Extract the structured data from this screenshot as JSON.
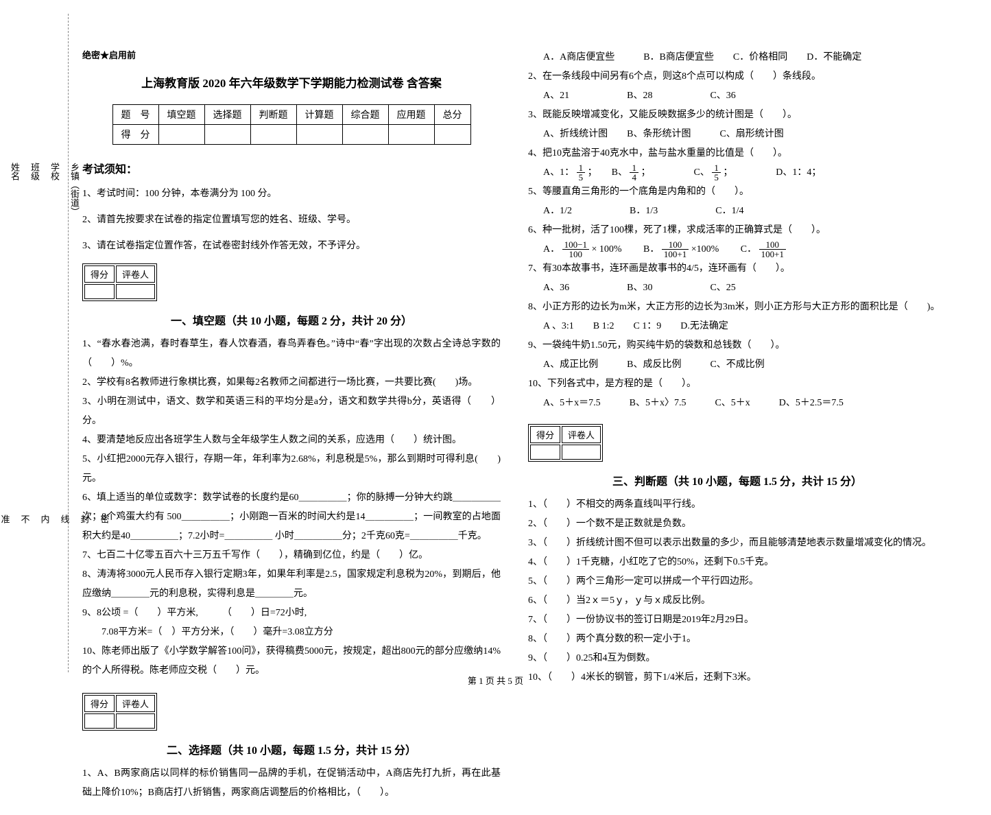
{
  "margin": {
    "labels": [
      "乡镇（街道）",
      "学校",
      "班级",
      "姓名",
      "学号"
    ],
    "hints": [
      "密",
      "封",
      "线",
      "内",
      "不",
      "准",
      "答",
      "题"
    ]
  },
  "header": {
    "secret": "绝密★启用前",
    "title": "上海教育版 2020 年六年级数学下学期能力检测试卷 含答案"
  },
  "score_table": {
    "row1": [
      "题　号",
      "填空题",
      "选择题",
      "判断题",
      "计算题",
      "综合题",
      "应用题",
      "总分"
    ],
    "row2": [
      "得　分",
      "",
      "",
      "",
      "",
      "",
      "",
      ""
    ]
  },
  "notice": {
    "head": "考试须知：",
    "items": [
      "1、考试时间：100 分钟，本卷满分为 100 分。",
      "2、请首先按要求在试卷的指定位置填写您的姓名、班级、学号。",
      "3、请在试卷指定位置作答，在试卷密封线外作答无效，不予评分。"
    ]
  },
  "scorebox_labels": [
    "得分",
    "评卷人"
  ],
  "section1": {
    "title": "一、填空题（共 10 小题，每题 2 分，共计 20 分）",
    "q1": "1、“春水春池满，春时春草生，春人饮春酒，春鸟弄春色。”诗中“春”字出现的次数占全诗总字数的（　　）%。",
    "q2": "2、学校有8名教师进行象棋比赛，如果每2名教师之间都进行一场比赛，一共要比赛(　　)场。",
    "q3": "3、小明在测试中，语文、数学和英语三科的平均分是a分，语文和数学共得b分，英语得（　　）分。",
    "q4": "4、要清楚地反应出各班学生人数与全年级学生人数之间的关系，应选用（　　）统计图。",
    "q5": "5、小红把2000元存入银行，存期一年，年利率为2.68%，利息税是5%，那么到期时可得利息(　　)元。",
    "q6": "6、填上适当的单位或数字：数学试卷的长度约是60＿＿＿＿＿；你的脉搏一分钟大约跳＿＿＿＿＿次；8个鸡蛋大约有 500＿＿＿＿＿；小刚跑一百米的时间大约是14＿＿＿＿＿；一间教室的占地面积大约是40＿＿＿＿＿；7.2小时=＿＿＿＿＿ 小时＿＿＿＿＿分；2千克60克=＿＿＿＿＿千克。",
    "q7": "7、七百二十亿零五百六十三万五千写作（　　），精确到亿位，约是（　　）亿。",
    "q8": "8、涛涛将3000元人民币存入银行定期3年，如果年利率是2.5，国家规定利息税为20%，到期后，他应缴纳＿＿＿＿元的利息税，实得利息是＿＿＿＿元。",
    "q9a": "9、8公顷 =（　　）平方米,　　　（　　）日=72小时,",
    "q9b": "　　7.08平方米=（　）平方分米，（　　）毫升=3.08立方分",
    "q10": "10、陈老师出版了《小学数学解答100问》，获得稿费5000元，按规定，超出800元的部分应缴纳14%的个人所得税。陈老师应交税（　　）元。"
  },
  "section2": {
    "title": "二、选择题（共 10 小题，每题 1.5 分，共计 15 分）",
    "q1": "1、A、B两家商店以同样的标价销售同一品牌的手机，在促销活动中，A商店先打九折，再在此基础上降价10%；B商店打八折销售，两家商店调整后的价格相比，（　　）。",
    "q1_opts": "A．A商店便宜些　　　B．B商店便宜些　　C．价格相同　　D．不能确定",
    "q2": "2、在一条线段中间另有6个点，则这8个点可以构成（　　）条线段。",
    "q2_opts": "A、21　　　　　　B、28　　　　　　C、36",
    "q3": "3、既能反映增减变化，又能反映数据多少的统计图是（　　）。",
    "q3_opts": "A、折线统计图　　B、条形统计图　　　C、扇形统计图",
    "q4": "4、把10克盐溶于40克水中，盐与盐水重量的比值是（　　）。",
    "q4_opt_a_pre": "A、1：",
    "q4_opt_b_pre": "；　　B、",
    "q4_opt_c_pre": "；　　　　　C、",
    "q4_opt_d": "；　　　　　D、1：4；",
    "q5": "5、等腰直角三角形的一个底角是内角和的（　　）。",
    "q5_opts": "A．1/2　　　　　　B．1/3　　　　　　C．1/4",
    "q6": "6、种一批树，活了100棵，死了1棵，求成活率的正确算式是（　　）。",
    "q6_opt_a_pre": "A．",
    "q6_opt_a_post": " × 100%",
    "q6_opt_b_pre": "　　B．",
    "q6_opt_b_post": "×100%",
    "q6_opt_c_pre": "　　C．",
    "q7": "7、有30本故事书，连环画是故事书的4/5，连环画有（　　）。",
    "q7_opts": "A、36　　　　　　B、30　　　　　　C、25",
    "q8": "8、小正方形的边长为m米，大正方形的边长为3m米，则小正方形与大正方形的面积比是（　　)。",
    "q8_opts": "A 、3:1　　B 1:2　　C 1：9　　D.无法确定",
    "q9": "9、一袋纯牛奶1.50元，购买纯牛奶的袋数和总钱数（　　）。",
    "q9_opts": "A、成正比例　　　B、成反比例　　　C、不成比例",
    "q10": "10、下列各式中，是方程的是（　　）。",
    "q10_opts": "A、5＋x＝7.5　　　B、5＋x〉7.5　　　C、5＋x　　　D、5＋2.5＝7.5"
  },
  "section3": {
    "title": "三、判断题（共 10 小题，每题 1.5 分，共计 15 分）",
    "items": [
      "1、（　　）不相交的两条直线叫平行线。",
      "2、（　　）一个数不是正数就是负数。",
      "3、（　　）折线统计图不但可以表示出数量的多少，而且能够清楚地表示数量增减变化的情况。",
      "4、（　　）1千克糖，小红吃了它的50%，还剩下0.5千克。",
      "5、（　　）两个三角形一定可以拼成一个平行四边形。",
      "6、（　　）当2ｘ＝5ｙ，ｙ与ｘ成反比例。",
      "7、（　　）一份协议书的签订日期是2019年2月29日。",
      "8、（　　）两个真分数的积一定小于1。",
      "9、（　　）0.25和4互为倒数。",
      "10、（　　）4米长的钢管，剪下1/4米后，还剩下3米。"
    ]
  },
  "footer": "第 1 页 共 5 页",
  "frac": {
    "one": "1",
    "five": "5",
    "four": "4",
    "hundred_minus_1": "100−1",
    "hundred": "100",
    "hundred_plus_1": "100+1"
  }
}
